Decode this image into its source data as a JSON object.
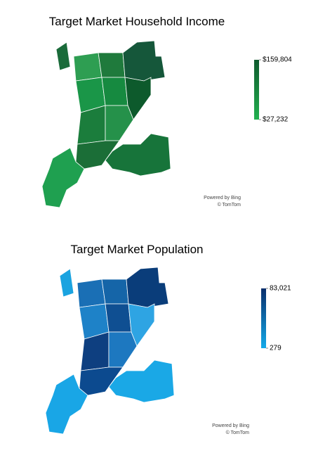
{
  "maps": [
    {
      "title": "Target Market Household Income",
      "legend": {
        "max": {
          "value": 159804,
          "label": "$159,804"
        },
        "min": {
          "value": 27232,
          "label": "$27,232"
        },
        "max_color": "#0f5a2e",
        "min_color": "#22b04f"
      },
      "attribution": [
        "Powered by Bing",
        "© TomTom"
      ]
    },
    {
      "title": "Target Market Population",
      "legend": {
        "max": {
          "value": 83021,
          "label": "83,021"
        },
        "min": {
          "value": 279,
          "label": "279"
        },
        "max_color": "#0a2e6b",
        "min_color": "#12aaea"
      },
      "attribution": [
        "Powered by Bing",
        "© TomTom"
      ]
    }
  ]
}
